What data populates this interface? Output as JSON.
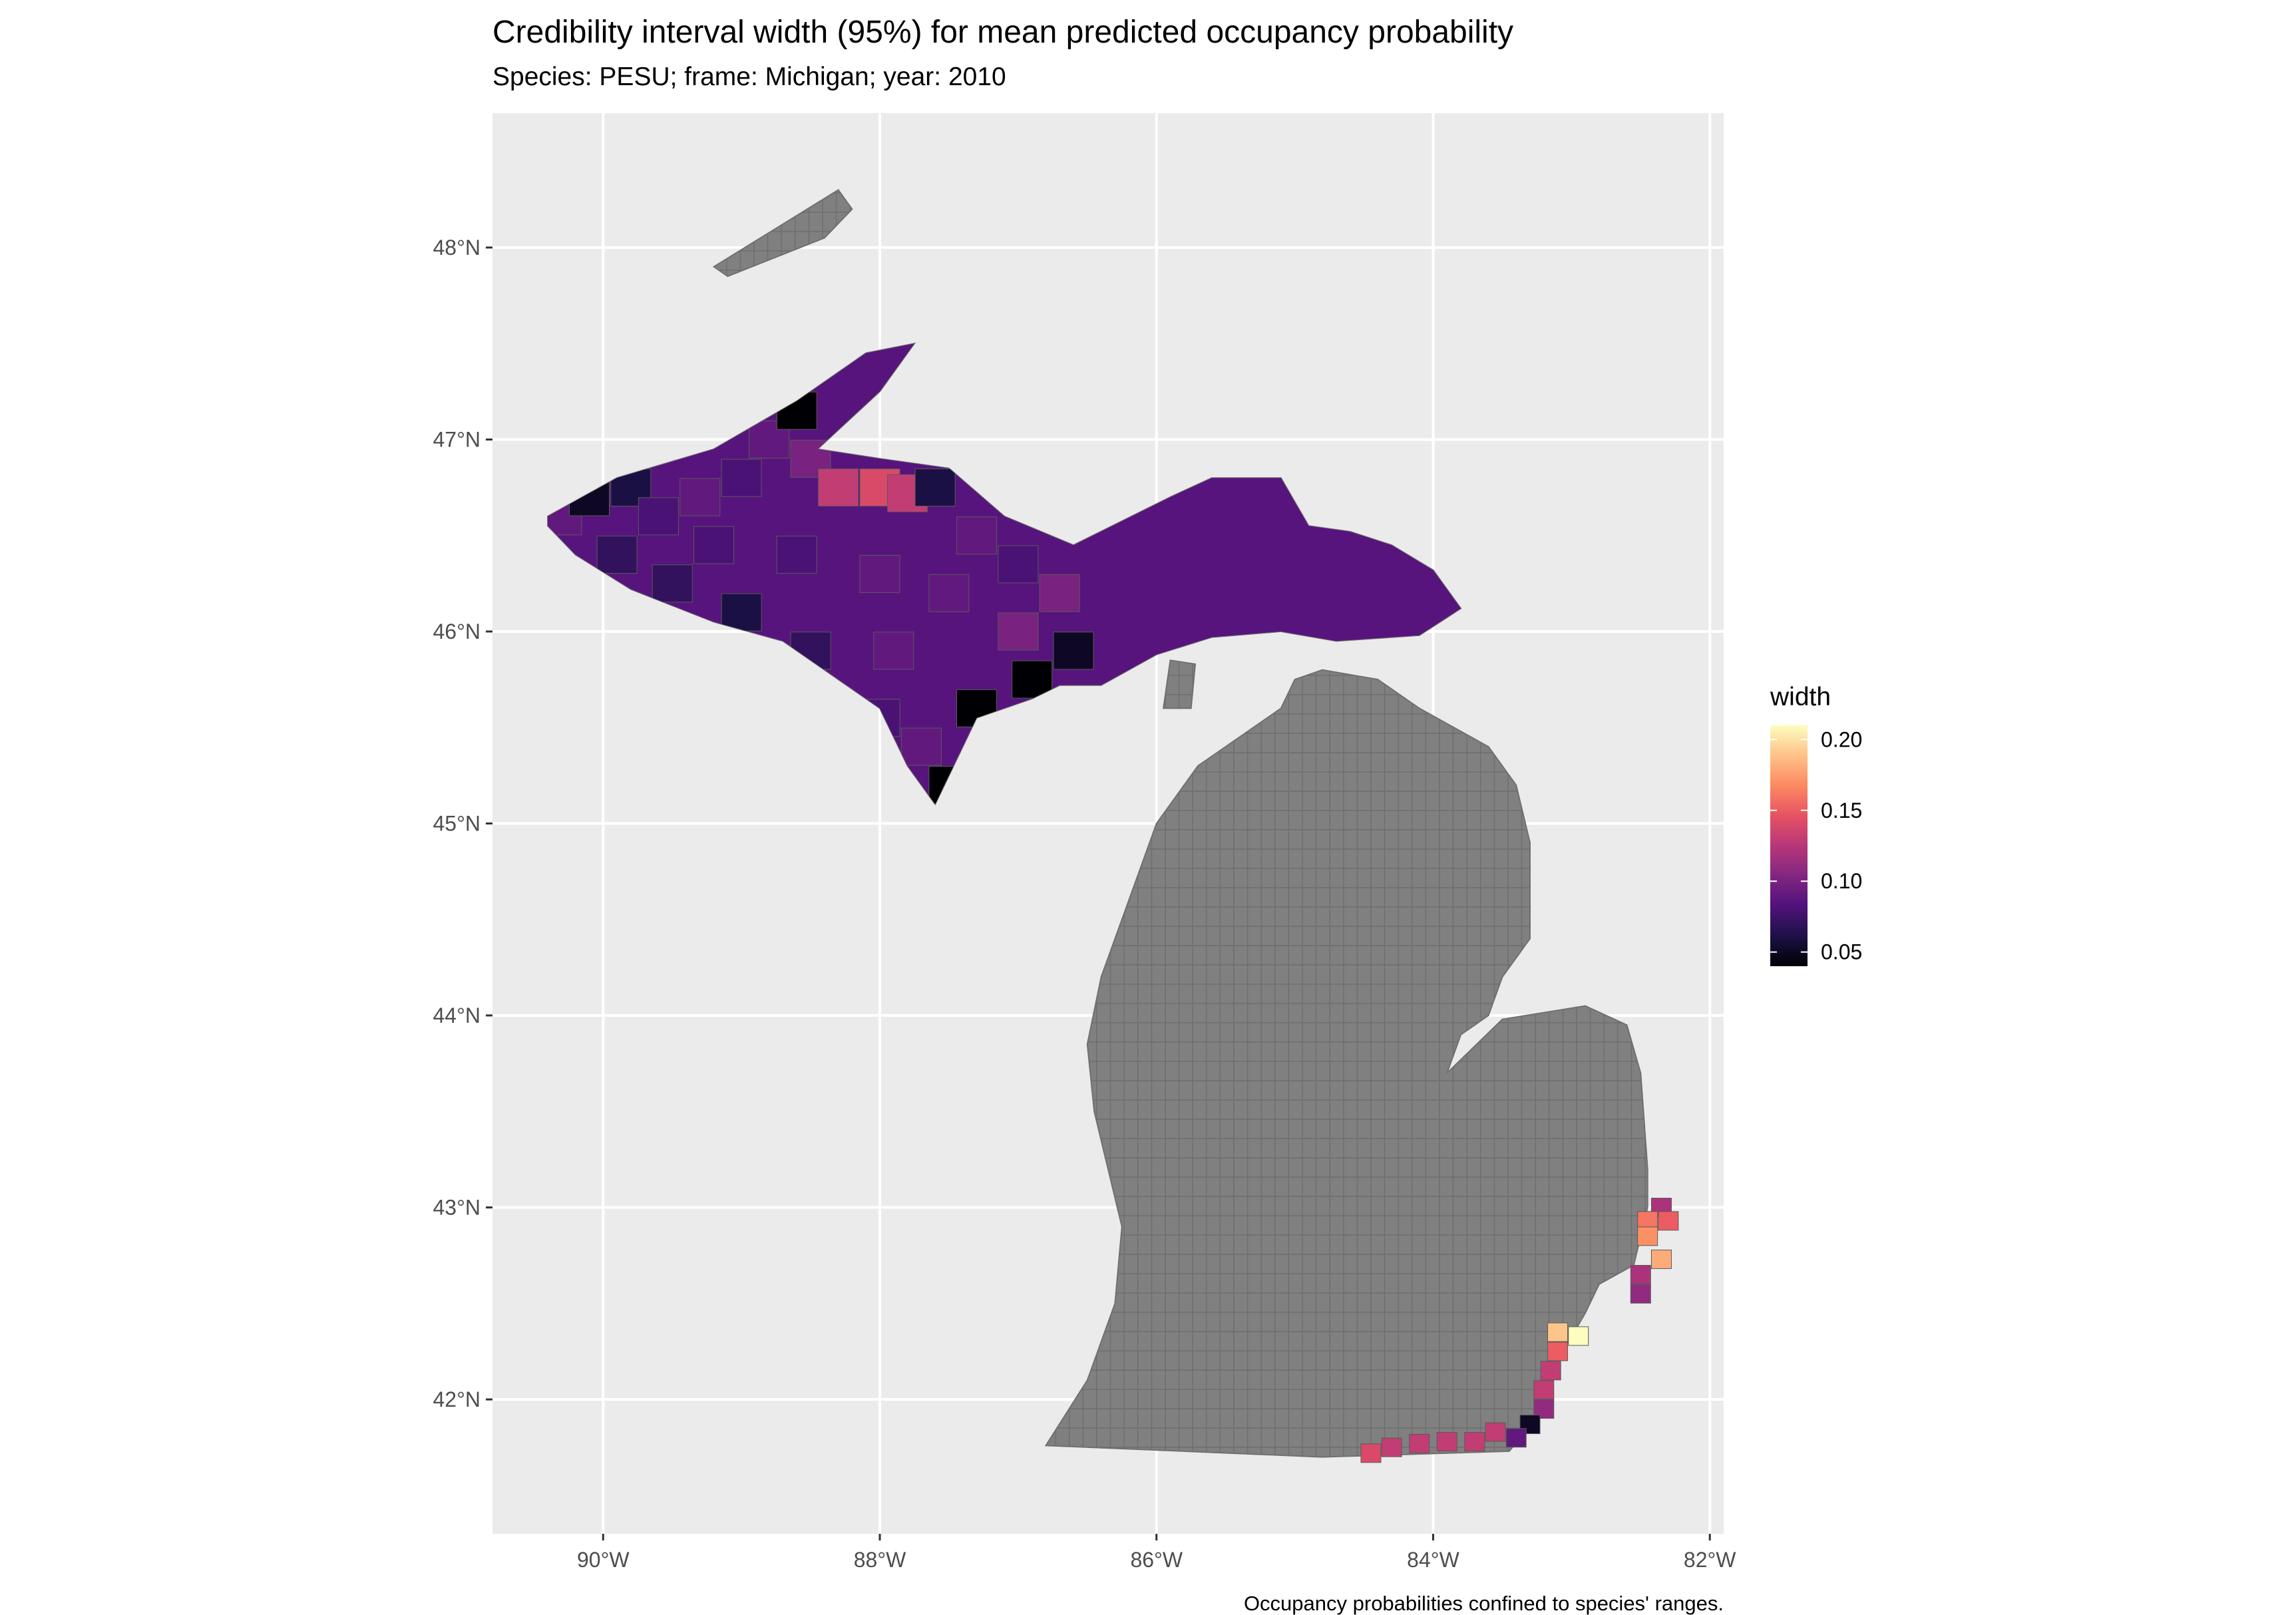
{
  "chart_data": {
    "type": "heatmap",
    "title": "Credibility interval width (95%) for mean predicted occupancy probability",
    "subtitle": "Species: PESU; frame: Michigan; year: 2010",
    "caption": "Occupancy probabilities confined to species' ranges.",
    "x_ticks": [
      {
        "value": -90,
        "label": "90°W"
      },
      {
        "value": -88,
        "label": "88°W"
      },
      {
        "value": -86,
        "label": "86°W"
      },
      {
        "value": -84,
        "label": "84°W"
      },
      {
        "value": -82,
        "label": "82°W"
      }
    ],
    "y_ticks": [
      {
        "value": 42,
        "label": "42°N"
      },
      {
        "value": 43,
        "label": "43°N"
      },
      {
        "value": 44,
        "label": "44°N"
      },
      {
        "value": 45,
        "label": "45°N"
      },
      {
        "value": 46,
        "label": "46°N"
      },
      {
        "value": 47,
        "label": "47°N"
      },
      {
        "value": 48,
        "label": "48°N"
      }
    ],
    "xlim": [
      -90.8,
      -81.9
    ],
    "ylim": [
      41.3,
      48.7
    ],
    "grid": true,
    "no_data_color": "#808080",
    "legend": {
      "title": "width",
      "position": "right",
      "range": [
        0.04,
        0.21
      ],
      "ticks": [
        {
          "value": 0.05,
          "label": "0.05"
        },
        {
          "value": 0.1,
          "label": "0.10"
        },
        {
          "value": 0.15,
          "label": "0.15"
        },
        {
          "value": 0.2,
          "label": "0.20"
        }
      ],
      "colormap": [
        "#000004",
        "#1d1147",
        "#51127c",
        "#822681",
        "#b73779",
        "#e75263",
        "#fc8961",
        "#fec287",
        "#fcfdbf"
      ]
    },
    "regions": {
      "isle_royale": [
        [
          -89.2,
          47.9
        ],
        [
          -88.3,
          48.3
        ],
        [
          -88.2,
          48.2
        ],
        [
          -88.4,
          48.05
        ],
        [
          -89.1,
          47.85
        ]
      ],
      "upper_peninsula": [
        [
          -90.4,
          46.6
        ],
        [
          -89.9,
          46.8
        ],
        [
          -89.2,
          46.95
        ],
        [
          -88.6,
          47.2
        ],
        [
          -88.1,
          47.45
        ],
        [
          -87.75,
          47.5
        ],
        [
          -88.0,
          47.25
        ],
        [
          -88.45,
          46.95
        ],
        [
          -88.0,
          46.9
        ],
        [
          -87.5,
          46.85
        ],
        [
          -87.1,
          46.6
        ],
        [
          -86.6,
          46.45
        ],
        [
          -85.9,
          46.7
        ],
        [
          -85.6,
          46.8
        ],
        [
          -85.1,
          46.8
        ],
        [
          -84.9,
          46.55
        ],
        [
          -84.6,
          46.52
        ],
        [
          -84.3,
          46.45
        ],
        [
          -84.0,
          46.32
        ],
        [
          -83.8,
          46.12
        ],
        [
          -84.1,
          45.98
        ],
        [
          -84.7,
          45.95
        ],
        [
          -85.1,
          46.0
        ],
        [
          -85.6,
          45.97
        ],
        [
          -86.0,
          45.88
        ],
        [
          -86.4,
          45.72
        ],
        [
          -86.7,
          45.72
        ],
        [
          -86.9,
          45.65
        ],
        [
          -87.3,
          45.55
        ],
        [
          -87.6,
          45.1
        ],
        [
          -87.8,
          45.3
        ],
        [
          -88.0,
          45.6
        ],
        [
          -88.4,
          45.8
        ],
        [
          -88.7,
          45.95
        ],
        [
          -89.2,
          46.05
        ],
        [
          -89.8,
          46.22
        ],
        [
          -90.2,
          46.4
        ],
        [
          -90.4,
          46.55
        ]
      ],
      "lower_peninsula": [
        [
          -84.8,
          45.8
        ],
        [
          -84.4,
          45.75
        ],
        [
          -84.1,
          45.6
        ],
        [
          -83.6,
          45.4
        ],
        [
          -83.4,
          45.2
        ],
        [
          -83.3,
          44.9
        ],
        [
          -83.3,
          44.4
        ],
        [
          -83.5,
          44.2
        ],
        [
          -83.6,
          44.0
        ],
        [
          -83.8,
          43.9
        ],
        [
          -83.9,
          43.7
        ],
        [
          -83.5,
          43.98
        ],
        [
          -82.9,
          44.05
        ],
        [
          -82.6,
          43.95
        ],
        [
          -82.5,
          43.7
        ],
        [
          -82.45,
          43.2
        ],
        [
          -82.45,
          43.0
        ],
        [
          -82.55,
          42.7
        ],
        [
          -82.8,
          42.6
        ],
        [
          -82.9,
          42.45
        ],
        [
          -83.1,
          42.2
        ],
        [
          -83.2,
          41.95
        ],
        [
          -83.45,
          41.73
        ],
        [
          -84.8,
          41.7
        ],
        [
          -86.8,
          41.76
        ],
        [
          -86.5,
          42.1
        ],
        [
          -86.3,
          42.5
        ],
        [
          -86.25,
          42.9
        ],
        [
          -86.45,
          43.5
        ],
        [
          -86.5,
          43.85
        ],
        [
          -86.4,
          44.2
        ],
        [
          -86.2,
          44.6
        ],
        [
          -86.0,
          45.0
        ],
        [
          -85.7,
          45.3
        ],
        [
          -85.4,
          45.45
        ],
        [
          -85.1,
          45.6
        ],
        [
          -85.0,
          45.75
        ]
      ],
      "door_islands": [
        [
          -85.95,
          45.6
        ],
        [
          -85.75,
          45.6
        ],
        [
          -85.72,
          45.83
        ],
        [
          -85.9,
          45.85
        ]
      ]
    },
    "values": [
      {
        "lon": -90.3,
        "lat": 46.6,
        "width": 0.09
      },
      {
        "lon": -90.1,
        "lat": 46.7,
        "width": 0.05
      },
      {
        "lon": -89.8,
        "lat": 46.75,
        "width": 0.06
      },
      {
        "lon": -89.6,
        "lat": 46.6,
        "width": 0.08
      },
      {
        "lon": -89.3,
        "lat": 46.7,
        "width": 0.09
      },
      {
        "lon": -89.0,
        "lat": 46.8,
        "width": 0.08
      },
      {
        "lon": -88.8,
        "lat": 47.0,
        "width": 0.09
      },
      {
        "lon": -88.6,
        "lat": 47.15,
        "width": 0.04
      },
      {
        "lon": -88.5,
        "lat": 46.9,
        "width": 0.1
      },
      {
        "lon": -88.3,
        "lat": 46.75,
        "width": 0.13
      },
      {
        "lon": -88.0,
        "lat": 46.75,
        "width": 0.14
      },
      {
        "lon": -87.8,
        "lat": 46.72,
        "width": 0.13
      },
      {
        "lon": -87.6,
        "lat": 46.75,
        "width": 0.06
      },
      {
        "lon": -87.3,
        "lat": 46.5,
        "width": 0.09
      },
      {
        "lon": -87.0,
        "lat": 46.35,
        "width": 0.08
      },
      {
        "lon": -86.7,
        "lat": 46.2,
        "width": 0.1
      },
      {
        "lon": -86.6,
        "lat": 45.9,
        "width": 0.05
      },
      {
        "lon": -86.9,
        "lat": 45.75,
        "width": 0.04
      },
      {
        "lon": -87.3,
        "lat": 45.6,
        "width": 0.04
      },
      {
        "lon": -87.5,
        "lat": 45.2,
        "width": 0.04
      },
      {
        "lon": -87.7,
        "lat": 45.4,
        "width": 0.09
      },
      {
        "lon": -88.0,
        "lat": 45.55,
        "width": 0.08
      },
      {
        "lon": -88.5,
        "lat": 45.9,
        "width": 0.07
      },
      {
        "lon": -89.0,
        "lat": 46.1,
        "width": 0.06
      },
      {
        "lon": -89.5,
        "lat": 46.25,
        "width": 0.07
      },
      {
        "lon": -89.9,
        "lat": 46.4,
        "width": 0.07
      },
      {
        "lon": -88.6,
        "lat": 46.4,
        "width": 0.08
      },
      {
        "lon": -88.0,
        "lat": 46.3,
        "width": 0.09
      },
      {
        "lon": -87.5,
        "lat": 46.2,
        "width": 0.09
      },
      {
        "lon": -87.0,
        "lat": 46.0,
        "width": 0.1
      },
      {
        "lon": -89.2,
        "lat": 46.45,
        "width": 0.08
      },
      {
        "lon": -87.9,
        "lat": 45.9,
        "width": 0.09
      },
      {
        "lon": -82.35,
        "lat": 43.0,
        "width": 0.12
      },
      {
        "lon": -82.45,
        "lat": 42.93,
        "width": 0.16
      },
      {
        "lon": -82.3,
        "lat": 42.93,
        "width": 0.15
      },
      {
        "lon": -82.45,
        "lat": 42.85,
        "width": 0.17
      },
      {
        "lon": -82.35,
        "lat": 42.73,
        "width": 0.18
      },
      {
        "lon": -82.5,
        "lat": 42.65,
        "width": 0.12
      },
      {
        "lon": -82.5,
        "lat": 42.55,
        "width": 0.11
      },
      {
        "lon": -83.1,
        "lat": 42.35,
        "width": 0.19
      },
      {
        "lon": -82.95,
        "lat": 42.33,
        "width": 0.21
      },
      {
        "lon": -83.1,
        "lat": 42.25,
        "width": 0.15
      },
      {
        "lon": -83.15,
        "lat": 42.15,
        "width": 0.13
      },
      {
        "lon": -83.2,
        "lat": 42.05,
        "width": 0.13
      },
      {
        "lon": -83.2,
        "lat": 41.95,
        "width": 0.11
      },
      {
        "lon": -83.3,
        "lat": 41.87,
        "width": 0.05
      },
      {
        "lon": -83.4,
        "lat": 41.8,
        "width": 0.09
      },
      {
        "lon": -83.55,
        "lat": 41.83,
        "width": 0.13
      },
      {
        "lon": -83.7,
        "lat": 41.78,
        "width": 0.13
      },
      {
        "lon": -83.9,
        "lat": 41.78,
        "width": 0.13
      },
      {
        "lon": -84.1,
        "lat": 41.77,
        "width": 0.13
      },
      {
        "lon": -84.3,
        "lat": 41.75,
        "width": 0.13
      },
      {
        "lon": -84.45,
        "lat": 41.72,
        "width": 0.14
      }
    ]
  }
}
